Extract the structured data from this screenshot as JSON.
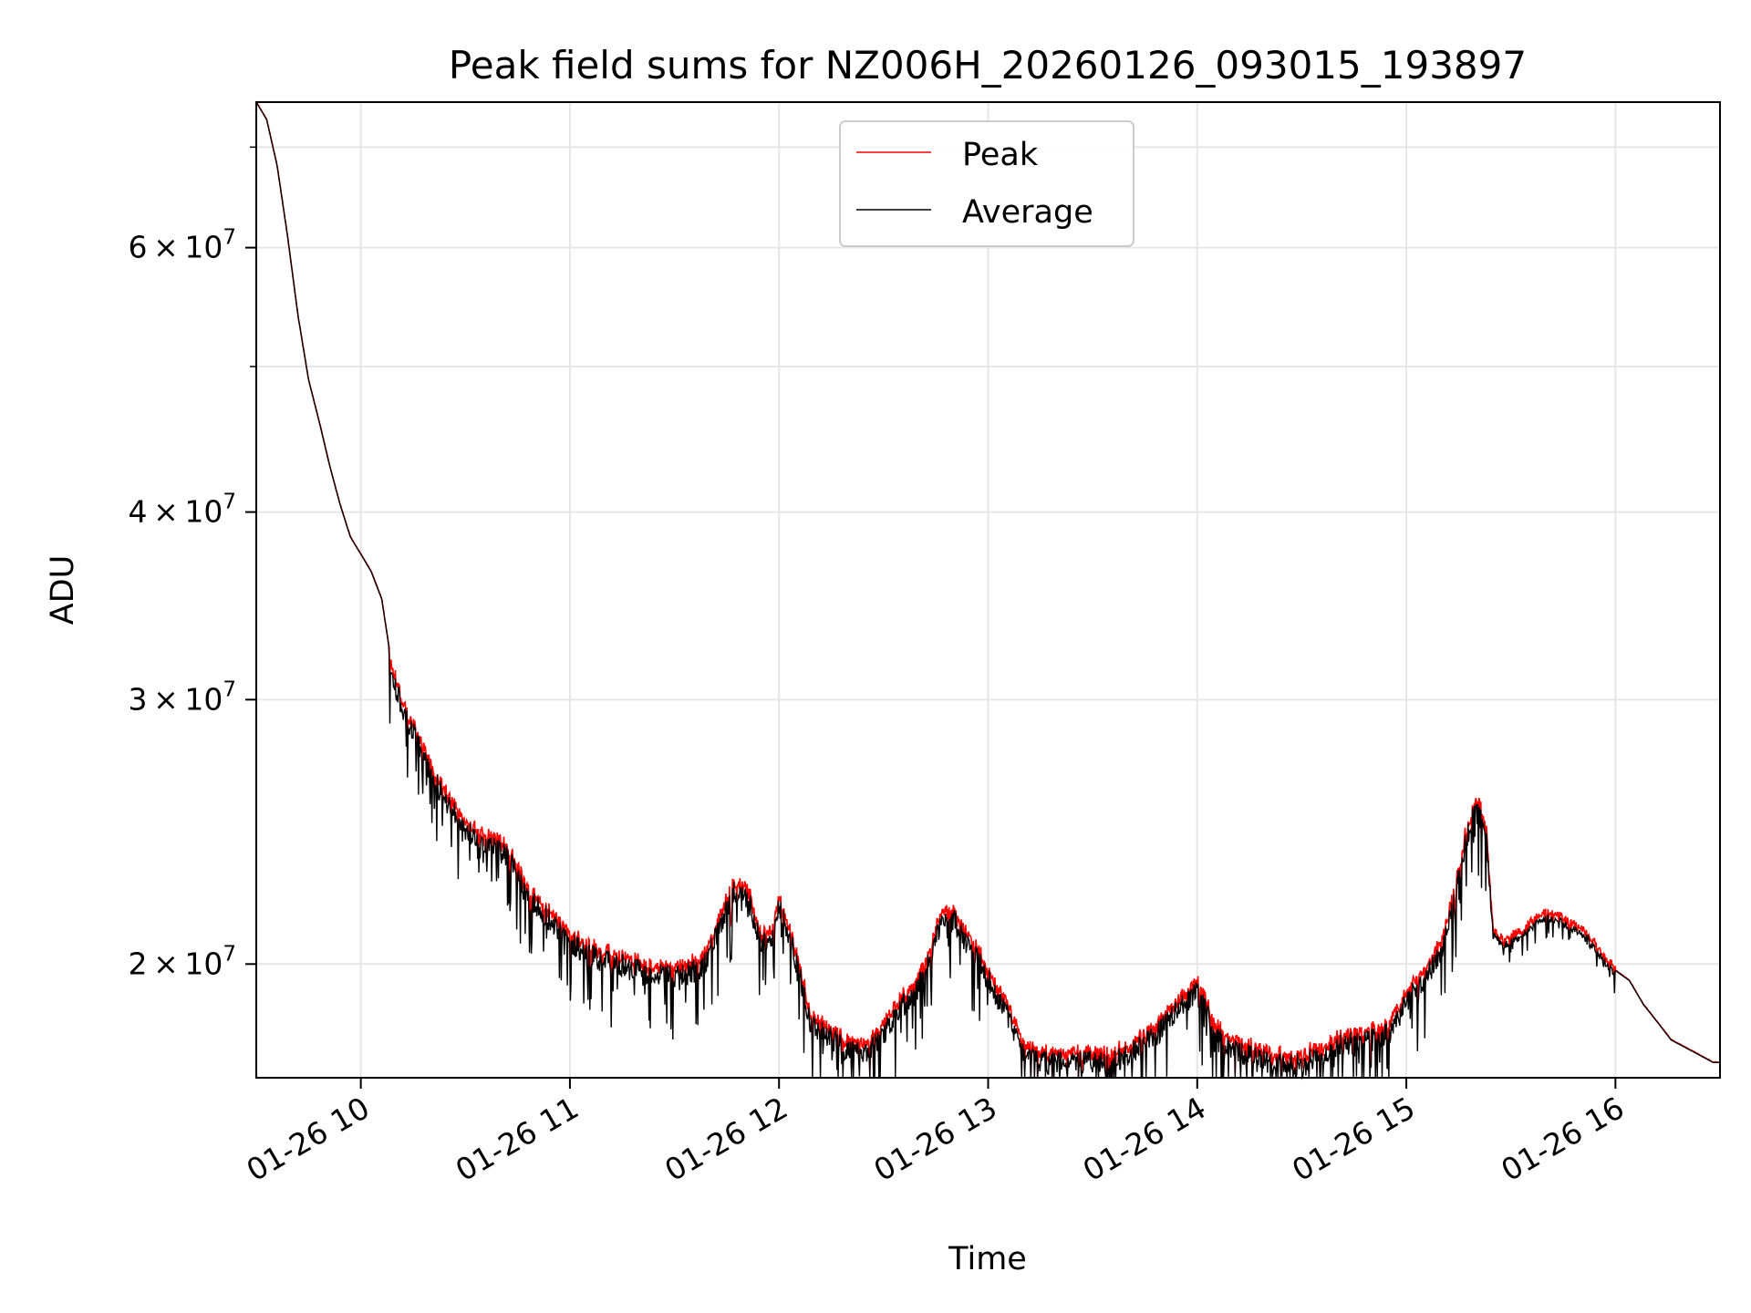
{
  "chart_data": {
    "type": "line",
    "title": "Peak field sums for NZ006H_20260126_093015_193897",
    "xlabel": "Time",
    "ylabel": "ADU",
    "x_ticks": [
      "01-26 10",
      "01-26 11",
      "01-26 12",
      "01-26 13",
      "01-26 14",
      "01-26 15",
      "01-26 16"
    ],
    "y_ticks": [
      {
        "value": 20000000,
        "mant": "2",
        "exp": "7"
      },
      {
        "value": 30000000,
        "mant": "3",
        "exp": "7"
      },
      {
        "value": 40000000,
        "mant": "4",
        "exp": "7"
      },
      {
        "value": 60000000,
        "mant": "6",
        "exp": "7"
      }
    ],
    "y_minor": [
      50000000,
      70000000
    ],
    "xlim": [
      "2026-01-26 09:30",
      "2026-01-26 16:30"
    ],
    "ylim": [
      16800000,
      75000000
    ],
    "yscale": "log",
    "grid": true,
    "legend_position": "top-center",
    "series": [
      {
        "name": "Peak",
        "color": "#ff0000"
      },
      {
        "name": "Average",
        "color": "#000000"
      }
    ],
    "keypoints": [
      {
        "t": "09:30",
        "y": 75000000
      },
      {
        "t": "09:33",
        "y": 73000000
      },
      {
        "t": "09:36",
        "y": 68000000
      },
      {
        "t": "09:39",
        "y": 61000000
      },
      {
        "t": "09:42",
        "y": 54000000
      },
      {
        "t": "09:45",
        "y": 49000000
      },
      {
        "t": "09:48",
        "y": 46000000
      },
      {
        "t": "09:51",
        "y": 43000000
      },
      {
        "t": "09:54",
        "y": 40500000
      },
      {
        "t": "09:57",
        "y": 38500000
      },
      {
        "t": "10:00",
        "y": 37500000
      },
      {
        "t": "10:03",
        "y": 36500000
      },
      {
        "t": "10:06",
        "y": 35000000
      },
      {
        "t": "10:09",
        "y": 31500000
      },
      {
        "t": "10:12",
        "y": 30000000
      },
      {
        "t": "10:15",
        "y": 29000000
      },
      {
        "t": "10:18",
        "y": 28000000
      },
      {
        "t": "10:21",
        "y": 27000000
      },
      {
        "t": "10:25",
        "y": 26000000
      },
      {
        "t": "10:30",
        "y": 25000000
      },
      {
        "t": "10:36",
        "y": 24500000
      },
      {
        "t": "10:42",
        "y": 24000000
      },
      {
        "t": "10:48",
        "y": 22500000
      },
      {
        "t": "10:54",
        "y": 21800000
      },
      {
        "t": "11:00",
        "y": 21000000
      },
      {
        "t": "11:08",
        "y": 20500000
      },
      {
        "t": "11:16",
        "y": 20300000
      },
      {
        "t": "11:24",
        "y": 20000000
      },
      {
        "t": "11:31",
        "y": 20000000
      },
      {
        "t": "11:38",
        "y": 20200000
      },
      {
        "t": "11:43",
        "y": 21500000
      },
      {
        "t": "11:47",
        "y": 22800000
      },
      {
        "t": "11:51",
        "y": 22500000
      },
      {
        "t": "11:55",
        "y": 21000000
      },
      {
        "t": "11:58",
        "y": 21200000
      },
      {
        "t": "12:00",
        "y": 22300000
      },
      {
        "t": "12:03",
        "y": 21200000
      },
      {
        "t": "12:06",
        "y": 20000000
      },
      {
        "t": "12:09",
        "y": 18600000
      },
      {
        "t": "12:14",
        "y": 18200000
      },
      {
        "t": "12:20",
        "y": 17800000
      },
      {
        "t": "12:26",
        "y": 17800000
      },
      {
        "t": "12:30",
        "y": 18300000
      },
      {
        "t": "12:34",
        "y": 18900000
      },
      {
        "t": "12:38",
        "y": 19400000
      },
      {
        "t": "12:42",
        "y": 20100000
      },
      {
        "t": "12:46",
        "y": 21500000
      },
      {
        "t": "12:49",
        "y": 22000000
      },
      {
        "t": "12:53",
        "y": 21200000
      },
      {
        "t": "12:57",
        "y": 20500000
      },
      {
        "t": "13:01",
        "y": 19700000
      },
      {
        "t": "13:06",
        "y": 18700000
      },
      {
        "t": "13:10",
        "y": 17800000
      },
      {
        "t": "13:15",
        "y": 17500000
      },
      {
        "t": "13:20",
        "y": 17500000
      },
      {
        "t": "13:25",
        "y": 17500000
      },
      {
        "t": "13:30",
        "y": 17500000
      },
      {
        "t": "13:35",
        "y": 17500000
      },
      {
        "t": "13:40",
        "y": 17700000
      },
      {
        "t": "13:45",
        "y": 18000000
      },
      {
        "t": "13:50",
        "y": 18500000
      },
      {
        "t": "13:55",
        "y": 19000000
      },
      {
        "t": "14:00",
        "y": 19500000
      },
      {
        "t": "14:03",
        "y": 18800000
      },
      {
        "t": "14:06",
        "y": 18200000
      },
      {
        "t": "14:10",
        "y": 17900000
      },
      {
        "t": "14:14",
        "y": 17700000
      },
      {
        "t": "14:18",
        "y": 17600000
      },
      {
        "t": "14:22",
        "y": 17500000
      },
      {
        "t": "14:26",
        "y": 17400000
      },
      {
        "t": "14:30",
        "y": 17500000
      },
      {
        "t": "14:34",
        "y": 17600000
      },
      {
        "t": "14:38",
        "y": 17800000
      },
      {
        "t": "14:42",
        "y": 18000000
      },
      {
        "t": "14:46",
        "y": 18100000
      },
      {
        "t": "14:50",
        "y": 18100000
      },
      {
        "t": "14:54",
        "y": 18300000
      },
      {
        "t": "14:58",
        "y": 18800000
      },
      {
        "t": "15:02",
        "y": 19500000
      },
      {
        "t": "15:06",
        "y": 20000000
      },
      {
        "t": "15:10",
        "y": 20800000
      },
      {
        "t": "15:14",
        "y": 22500000
      },
      {
        "t": "15:17",
        "y": 24500000
      },
      {
        "t": "15:19",
        "y": 25500000
      },
      {
        "t": "15:21",
        "y": 25600000
      },
      {
        "t": "15:23",
        "y": 24500000
      },
      {
        "t": "15:25",
        "y": 21000000
      },
      {
        "t": "15:28",
        "y": 20700000
      },
      {
        "t": "15:32",
        "y": 20900000
      },
      {
        "t": "15:36",
        "y": 21300000
      },
      {
        "t": "15:40",
        "y": 21600000
      },
      {
        "t": "15:44",
        "y": 21500000
      },
      {
        "t": "15:48",
        "y": 21200000
      },
      {
        "t": "15:52",
        "y": 20900000
      },
      {
        "t": "15:56",
        "y": 20300000
      },
      {
        "t": "16:00",
        "y": 19800000
      },
      {
        "t": "16:04",
        "y": 19500000
      },
      {
        "t": "16:08",
        "y": 18800000
      },
      {
        "t": "16:12",
        "y": 18300000
      },
      {
        "t": "16:16",
        "y": 17800000
      },
      {
        "t": "16:20",
        "y": 17600000
      },
      {
        "t": "16:24",
        "y": 17400000
      },
      {
        "t": "16:28",
        "y": 17200000
      },
      {
        "t": "16:30",
        "y": 17200000
      }
    ]
  }
}
